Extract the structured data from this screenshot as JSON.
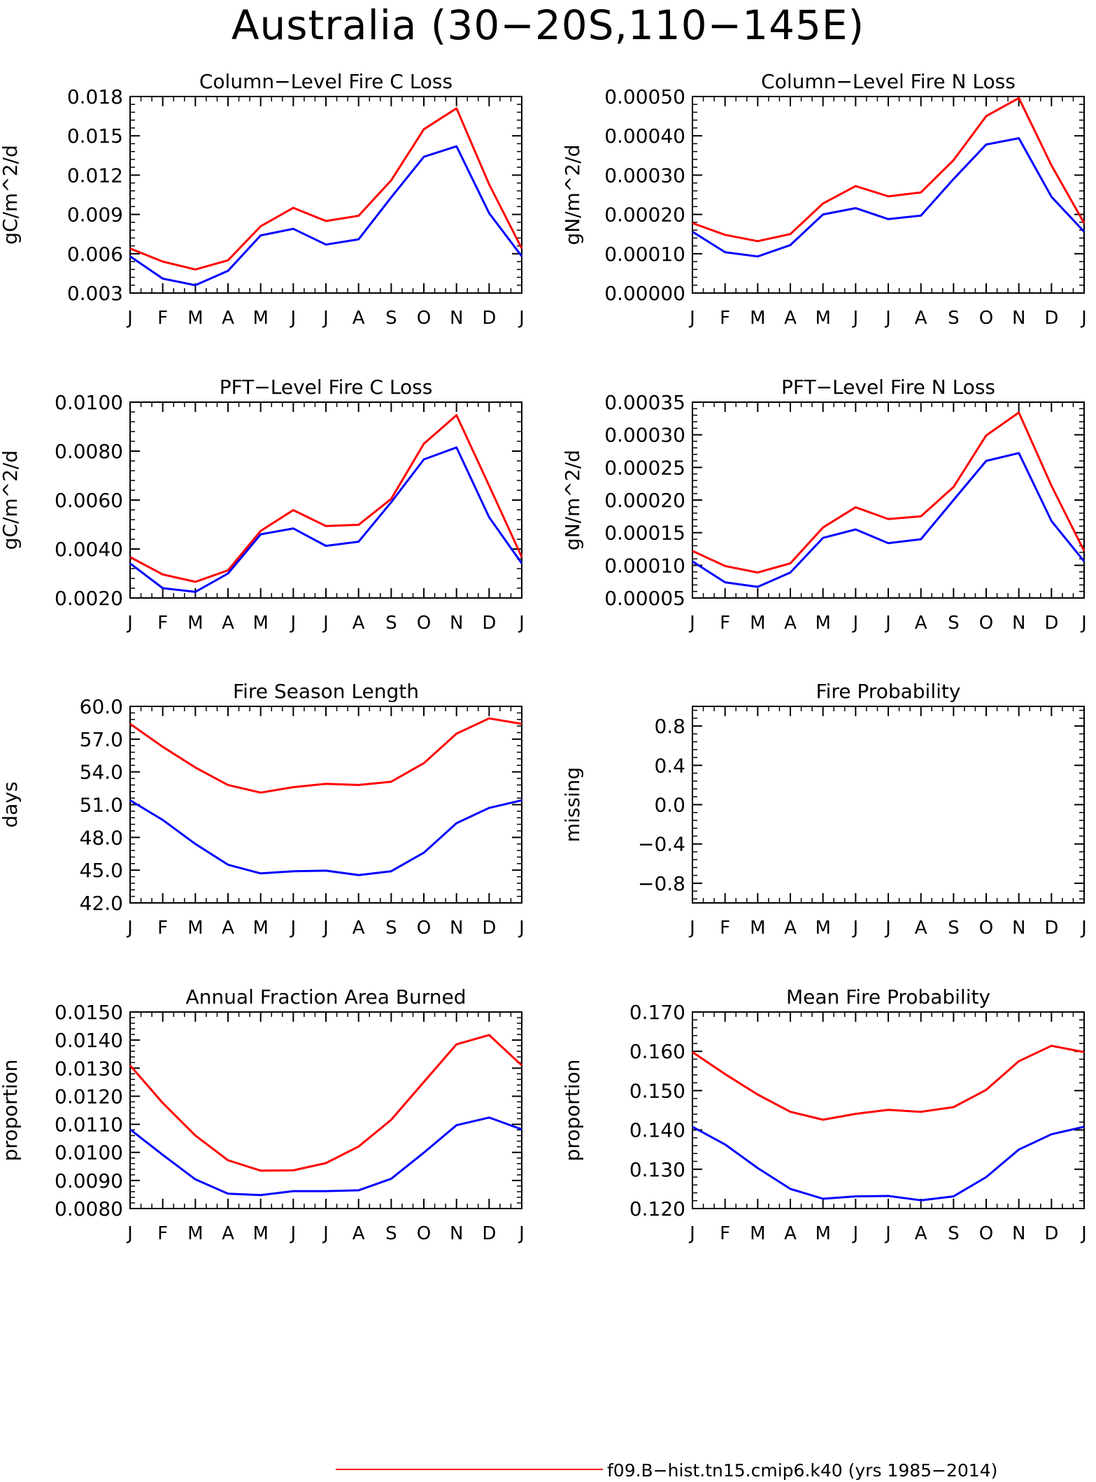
{
  "page": {
    "title": "Australia (30−20S,110−145E)"
  },
  "legend": {
    "entries": [
      {
        "label": "f09.B−hist.tn15.cmip6.k40 (yrs 1985−2014)",
        "color": "#ff0000"
      }
    ]
  },
  "colors": {
    "red": "#ff0000",
    "blue": "#0000ff"
  },
  "chart_data": [
    {
      "type": "line",
      "title": "Column−Level Fire C Loss",
      "ylabel": "gC/m^2/d",
      "categories": [
        "J",
        "F",
        "M",
        "A",
        "M",
        "J",
        "J",
        "A",
        "S",
        "O",
        "N",
        "D",
        "J"
      ],
      "ylim": [
        0.003,
        0.018
      ],
      "yticks": [
        0.003,
        0.006,
        0.009,
        0.012,
        0.015,
        0.018
      ],
      "yticklabels": [
        "0.003",
        "0.006",
        "0.009",
        "0.012",
        "0.015",
        "0.018"
      ],
      "series": [
        {
          "color": "#ff0000",
          "values": [
            0.0064,
            0.0054,
            0.0048,
            0.0055,
            0.0081,
            0.0095,
            0.0085,
            0.0089,
            0.0116,
            0.0155,
            0.0171,
            0.0113,
            0.0064
          ]
        },
        {
          "color": "#0000ff",
          "values": [
            0.0058,
            0.0041,
            0.0036,
            0.0047,
            0.0074,
            0.0079,
            0.0067,
            0.0071,
            0.0103,
            0.0134,
            0.0142,
            0.0091,
            0.0058
          ]
        }
      ]
    },
    {
      "type": "line",
      "title": "Column−Level Fire N Loss",
      "ylabel": "gN/m^2/d",
      "categories": [
        "J",
        "F",
        "M",
        "A",
        "M",
        "J",
        "J",
        "A",
        "S",
        "O",
        "N",
        "D",
        "J"
      ],
      "ylim": [
        0.0,
        0.0005
      ],
      "yticks": [
        0.0,
        0.0001,
        0.0002,
        0.0003,
        0.0004,
        0.0005
      ],
      "yticklabels": [
        "0.00000",
        "0.00010",
        "0.00020",
        "0.00030",
        "0.00040",
        "0.00050"
      ],
      "series": [
        {
          "color": "#ff0000",
          "values": [
            0.000178,
            0.000148,
            0.000132,
            0.00015,
            0.000228,
            0.000272,
            0.000246,
            0.000256,
            0.000338,
            0.00045,
            0.000496,
            0.000325,
            0.000178
          ]
        },
        {
          "color": "#0000ff",
          "values": [
            0.000156,
            0.000104,
            9.3e-05,
            0.000122,
            0.0002,
            0.000216,
            0.000188,
            0.000197,
            0.00029,
            0.000378,
            0.000394,
            0.000245,
            0.000156
          ]
        }
      ]
    },
    {
      "type": "line",
      "title": "PFT−Level Fire C Loss",
      "ylabel": "gC/m^2/d",
      "categories": [
        "J",
        "F",
        "M",
        "A",
        "M",
        "J",
        "J",
        "A",
        "S",
        "O",
        "N",
        "D",
        "J"
      ],
      "ylim": [
        0.002,
        0.01
      ],
      "yticks": [
        0.002,
        0.004,
        0.006,
        0.008,
        0.01
      ],
      "yticklabels": [
        "0.0020",
        "0.0040",
        "0.0060",
        "0.0080",
        "0.0100"
      ],
      "series": [
        {
          "color": "#ff0000",
          "values": [
            0.00367,
            0.00296,
            0.00266,
            0.00313,
            0.00474,
            0.00559,
            0.00494,
            0.00499,
            0.00605,
            0.0083,
            0.00947,
            0.00659,
            0.00367
          ]
        },
        {
          "color": "#0000ff",
          "values": [
            0.00341,
            0.0024,
            0.00225,
            0.003,
            0.0046,
            0.00484,
            0.00413,
            0.0043,
            0.00591,
            0.00766,
            0.00815,
            0.0053,
            0.00341
          ]
        }
      ]
    },
    {
      "type": "line",
      "title": "PFT−Level Fire N Loss",
      "ylabel": "gN/m^2/d",
      "categories": [
        "J",
        "F",
        "M",
        "A",
        "M",
        "J",
        "J",
        "A",
        "S",
        "O",
        "N",
        "D",
        "J"
      ],
      "ylim": [
        5e-05,
        0.00035
      ],
      "yticks": [
        5e-05,
        0.0001,
        0.00015,
        0.0002,
        0.00025,
        0.0003,
        0.00035
      ],
      "yticklabels": [
        "0.00005",
        "0.00010",
        "0.00015",
        "0.00020",
        "0.00025",
        "0.00030",
        "0.00035"
      ],
      "series": [
        {
          "color": "#ff0000",
          "values": [
            0.000122,
            9.9e-05,
            8.9e-05,
            0.000103,
            0.000158,
            0.000189,
            0.000171,
            0.000175,
            0.00022,
            0.000299,
            0.000334,
            0.000222,
            0.000122
          ]
        },
        {
          "color": "#0000ff",
          "values": [
            0.000106,
            7.4e-05,
            6.7e-05,
            8.9e-05,
            0.000142,
            0.000155,
            0.000134,
            0.00014,
            0.0002,
            0.00026,
            0.000272,
            0.000168,
            0.000106
          ]
        }
      ]
    },
    {
      "type": "line",
      "title": "Fire Season Length",
      "ylabel": "days",
      "categories": [
        "J",
        "F",
        "M",
        "A",
        "M",
        "J",
        "J",
        "A",
        "S",
        "O",
        "N",
        "D",
        "J"
      ],
      "ylim": [
        42.0,
        60.0
      ],
      "yticks": [
        42,
        45,
        48,
        51,
        54,
        57,
        60
      ],
      "yticklabels": [
        "42.0",
        "45.0",
        "48.0",
        "51.0",
        "54.0",
        "57.0",
        "60.0"
      ],
      "series": [
        {
          "color": "#ff0000",
          "values": [
            58.4,
            56.3,
            54.4,
            52.8,
            52.1,
            52.6,
            52.9,
            52.8,
            53.1,
            54.8,
            57.5,
            58.9,
            58.4
          ]
        },
        {
          "color": "#0000ff",
          "values": [
            51.4,
            49.6,
            47.4,
            45.5,
            44.7,
            44.9,
            44.95,
            44.55,
            44.9,
            46.6,
            49.3,
            50.7,
            51.4
          ]
        }
      ]
    },
    {
      "type": "line",
      "title": "Fire Probability",
      "ylabel": "missing",
      "categories": [
        "J",
        "F",
        "M",
        "A",
        "M",
        "J",
        "J",
        "A",
        "S",
        "O",
        "N",
        "D",
        "J"
      ],
      "ylim": [
        -1.0,
        1.0
      ],
      "yticks": [
        -0.8,
        -0.4,
        0.0,
        0.4,
        0.8
      ],
      "yticklabels": [
        "−0.8",
        "−0.4",
        "0.0",
        "0.4",
        "0.8"
      ],
      "series": []
    },
    {
      "type": "line",
      "title": "Annual Fraction Area Burned",
      "ylabel": "proportion",
      "categories": [
        "J",
        "F",
        "M",
        "A",
        "M",
        "J",
        "J",
        "A",
        "S",
        "O",
        "N",
        "D",
        "J"
      ],
      "ylim": [
        0.008,
        0.015
      ],
      "yticks": [
        0.008,
        0.009,
        0.01,
        0.011,
        0.012,
        0.013,
        0.014,
        0.015
      ],
      "yticklabels": [
        "0.0080",
        "0.0090",
        "0.0100",
        "0.0110",
        "0.0120",
        "0.0130",
        "0.0140",
        "0.0150"
      ],
      "series": [
        {
          "color": "#ff0000",
          "values": [
            0.0131,
            0.01176,
            0.0106,
            0.00972,
            0.00935,
            0.00936,
            0.00962,
            0.01021,
            0.01116,
            0.01251,
            0.01385,
            0.01418,
            0.0131
          ]
        },
        {
          "color": "#0000ff",
          "values": [
            0.01082,
            0.00991,
            0.00904,
            0.00853,
            0.00848,
            0.00862,
            0.00862,
            0.00865,
            0.00906,
            0.00999,
            0.01097,
            0.01124,
            0.01082
          ]
        }
      ]
    },
    {
      "type": "line",
      "title": "Mean Fire Probability",
      "ylabel": "proportion",
      "categories": [
        "J",
        "F",
        "M",
        "A",
        "M",
        "J",
        "J",
        "A",
        "S",
        "O",
        "N",
        "D",
        "J"
      ],
      "ylim": [
        0.12,
        0.17
      ],
      "yticks": [
        0.12,
        0.13,
        0.14,
        0.15,
        0.16,
        0.17
      ],
      "yticklabels": [
        "0.120",
        "0.130",
        "0.140",
        "0.150",
        "0.160",
        "0.170"
      ],
      "series": [
        {
          "color": "#ff0000",
          "values": [
            0.1598,
            0.1542,
            0.149,
            0.1446,
            0.1426,
            0.1441,
            0.1451,
            0.1446,
            0.1458,
            0.1502,
            0.1575,
            0.1614,
            0.1598
          ]
        },
        {
          "color": "#0000ff",
          "values": [
            0.1408,
            0.1363,
            0.1303,
            0.125,
            0.1225,
            0.1231,
            0.1232,
            0.1221,
            0.1231,
            0.128,
            0.135,
            0.1389,
            0.1408
          ]
        }
      ]
    }
  ]
}
